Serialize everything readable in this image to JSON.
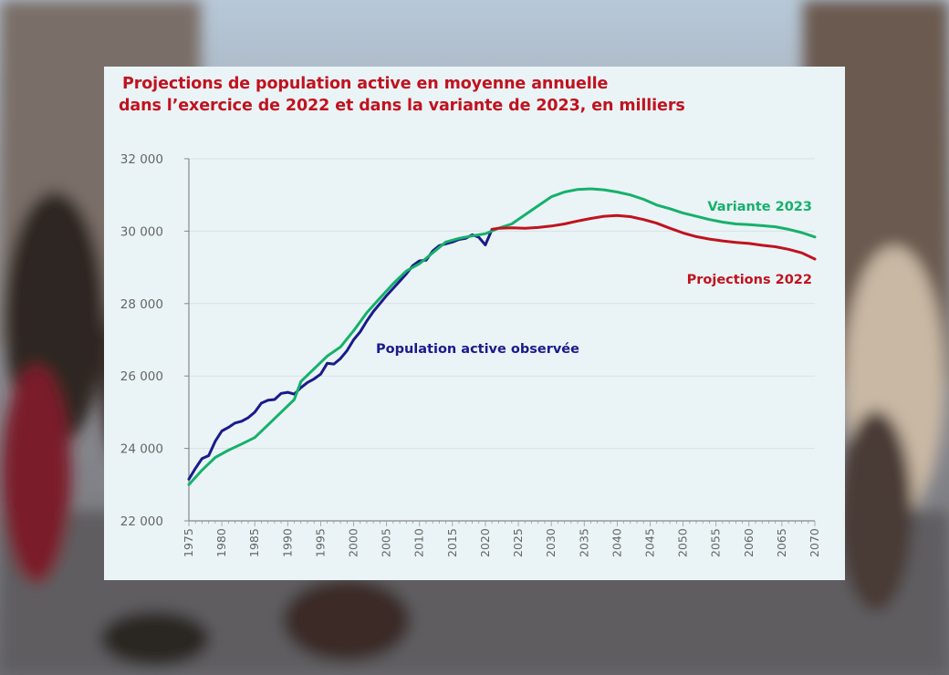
{
  "chart_data": {
    "type": "line",
    "title_lines": [
      "Projections de population active en moyenne annuelle",
      "dans l’exercice de 2022 et dans la variante de 2023, en milliers"
    ],
    "xlabel": "",
    "ylabel": "",
    "xlim": [
      1975,
      2070
    ],
    "ylim": [
      22000,
      32000
    ],
    "x_ticks": [
      1975,
      1980,
      1985,
      1990,
      1995,
      2000,
      2005,
      2010,
      2015,
      2020,
      2025,
      2030,
      2035,
      2040,
      2045,
      2050,
      2055,
      2060,
      2065,
      2070
    ],
    "y_ticks": [
      22000,
      24000,
      26000,
      28000,
      30000,
      32000
    ],
    "y_tick_labels": [
      "22 000",
      "24 000",
      "26 000",
      "28 000",
      "30 000",
      "32 000"
    ],
    "grid": "horizontal",
    "series": [
      {
        "name": "Population active observée",
        "color": "#1a1a8c",
        "x": [
          1975,
          1976,
          1977,
          1978,
          1979,
          1980,
          1981,
          1982,
          1983,
          1984,
          1985,
          1986,
          1987,
          1988,
          1989,
          1990,
          1991,
          1992,
          1993,
          1994,
          1995,
          1996,
          1997,
          1998,
          1999,
          2000,
          2001,
          2002,
          2003,
          2004,
          2005,
          2006,
          2007,
          2008,
          2009,
          2010,
          2011,
          2012,
          2013,
          2014,
          2015,
          2016,
          2017,
          2018,
          2019,
          2020,
          2021
        ],
        "y": [
          23150,
          23450,
          23720,
          23800,
          24200,
          24480,
          24580,
          24700,
          24750,
          24850,
          25000,
          25250,
          25330,
          25350,
          25520,
          25550,
          25500,
          25680,
          25820,
          25920,
          26050,
          26350,
          26330,
          26480,
          26700,
          27000,
          27220,
          27520,
          27780,
          28000,
          28220,
          28420,
          28620,
          28820,
          29050,
          29180,
          29200,
          29450,
          29600,
          29650,
          29700,
          29770,
          29800,
          29900,
          29830,
          29620,
          30050
        ]
      },
      {
        "name": "Variante 2023",
        "color": "#17b06b",
        "x": [
          1975,
          1977,
          1979,
          1981,
          1983,
          1985,
          1987,
          1989,
          1991,
          1992,
          1994,
          1996,
          1998,
          2000,
          2002,
          2004,
          2006,
          2008,
          2010,
          2012,
          2014,
          2016,
          2018,
          2020,
          2022,
          2024,
          2026,
          2028,
          2030,
          2032,
          2034,
          2036,
          2038,
          2040,
          2042,
          2044,
          2046,
          2048,
          2050,
          2052,
          2054,
          2056,
          2058,
          2060,
          2062,
          2064,
          2066,
          2068,
          2070
        ],
        "y": [
          23000,
          23400,
          23750,
          23950,
          24120,
          24300,
          24650,
          25000,
          25350,
          25850,
          26200,
          26550,
          26800,
          27250,
          27750,
          28150,
          28550,
          28900,
          29100,
          29400,
          29700,
          29800,
          29870,
          29930,
          30080,
          30200,
          30450,
          30700,
          30950,
          31080,
          31150,
          31170,
          31140,
          31080,
          31000,
          30880,
          30720,
          30620,
          30500,
          30410,
          30320,
          30250,
          30200,
          30180,
          30150,
          30120,
          30050,
          29960,
          29840
        ]
      },
      {
        "name": "Projections 2022",
        "color": "#c1121f",
        "x": [
          2021,
          2022,
          2024,
          2026,
          2028,
          2030,
          2032,
          2034,
          2036,
          2038,
          2040,
          2042,
          2044,
          2046,
          2048,
          2050,
          2052,
          2054,
          2056,
          2058,
          2060,
          2062,
          2064,
          2066,
          2068,
          2070
        ],
        "y": [
          30050,
          30080,
          30090,
          30080,
          30100,
          30140,
          30200,
          30280,
          30350,
          30410,
          30430,
          30400,
          30320,
          30220,
          30080,
          29950,
          29850,
          29780,
          29730,
          29690,
          29660,
          29610,
          29570,
          29500,
          29400,
          29230
        ]
      }
    ],
    "annotations": [
      {
        "text": "Variante 2023",
        "series": 1
      },
      {
        "text": "Projections 2022",
        "series": 2
      },
      {
        "text": "Population active observée",
        "series": 0
      }
    ]
  }
}
